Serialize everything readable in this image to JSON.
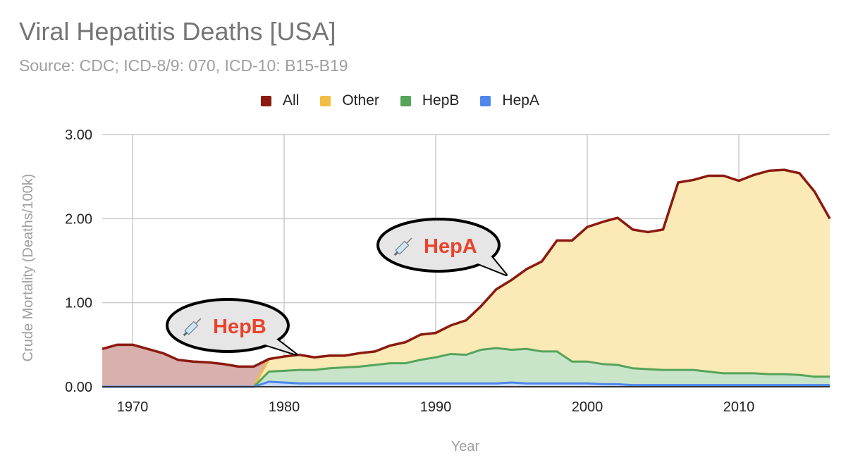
{
  "chart_data": {
    "type": "area",
    "stacked": true,
    "title": "Viral Hepatitis Deaths [USA]",
    "subtitle": "Source: CDC; ICD-8/9: 070, ICD-10: B15-B19",
    "xlabel": "Year",
    "ylabel": "Crude Mortality (Deaths/100k)",
    "xlim": [
      1968,
      2016
    ],
    "ylim": [
      0,
      3
    ],
    "xticks": [
      1970,
      1980,
      1990,
      2000,
      2010
    ],
    "xtick_labels": [
      "1970",
      "1980",
      "1990",
      "2000",
      "2010"
    ],
    "yticks": [
      0,
      1,
      2,
      3
    ],
    "ytick_labels": [
      "0.00",
      "1.00",
      "2.00",
      "3.00"
    ],
    "grid": true,
    "legend_position": "top",
    "x": [
      1968,
      1969,
      1970,
      1971,
      1972,
      1973,
      1974,
      1975,
      1976,
      1977,
      1978,
      1979,
      1980,
      1981,
      1982,
      1983,
      1984,
      1985,
      1986,
      1987,
      1988,
      1989,
      1990,
      1991,
      1992,
      1993,
      1994,
      1995,
      1996,
      1997,
      1998,
      1999,
      2000,
      2001,
      2002,
      2003,
      2004,
      2005,
      2006,
      2007,
      2008,
      2009,
      2010,
      2011,
      2012,
      2013,
      2014,
      2015,
      2016
    ],
    "series": [
      {
        "name": "All",
        "color": "#8b1a10",
        "fill": "#d8b0ae",
        "values": [
          0.45,
          0.5,
          0.5,
          0.45,
          0.4,
          0.32,
          0.3,
          0.29,
          0.27,
          0.24,
          0.24,
          0.33,
          0.36,
          0.38,
          0.35,
          0.37,
          0.37,
          0.4,
          0.42,
          0.49,
          0.53,
          0.62,
          0.64,
          0.73,
          0.79,
          0.96,
          1.16,
          1.27,
          1.4,
          1.49,
          1.74,
          1.74,
          1.9,
          1.96,
          2.01,
          1.87,
          1.84,
          1.87,
          2.43,
          2.46,
          2.51,
          2.51,
          2.45,
          2.52,
          2.57,
          2.58,
          2.54,
          2.32,
          2.0
        ]
      },
      {
        "name": "Other",
        "color": "#f2bd42",
        "fill": "#fbe9b6",
        "values": [
          0,
          0,
          0,
          0,
          0,
          0,
          0,
          0,
          0,
          0,
          0,
          0.15,
          0.17,
          0.18,
          0.15,
          0.15,
          0.14,
          0.16,
          0.16,
          0.21,
          0.25,
          0.3,
          0.29,
          0.34,
          0.41,
          0.52,
          0.7,
          0.83,
          0.95,
          1.07,
          1.32,
          1.44,
          1.6,
          1.69,
          1.75,
          1.65,
          1.63,
          1.67,
          2.23,
          2.26,
          2.33,
          2.35,
          2.29,
          2.36,
          2.42,
          2.43,
          2.4,
          2.2,
          1.88
        ]
      },
      {
        "name": "HepB",
        "color": "#55a45a",
        "fill": "#c8e5c9",
        "values": [
          0,
          0,
          0,
          0,
          0,
          0,
          0,
          0,
          0,
          0,
          0,
          0.12,
          0.14,
          0.16,
          0.16,
          0.18,
          0.19,
          0.2,
          0.22,
          0.24,
          0.24,
          0.28,
          0.31,
          0.35,
          0.34,
          0.4,
          0.42,
          0.39,
          0.41,
          0.38,
          0.38,
          0.26,
          0.26,
          0.24,
          0.23,
          0.2,
          0.19,
          0.18,
          0.18,
          0.18,
          0.16,
          0.14,
          0.14,
          0.14,
          0.13,
          0.13,
          0.12,
          0.1,
          0.1
        ]
      },
      {
        "name": "HepA",
        "color": "#4e86ec",
        "fill": "#c6d9f8",
        "values": [
          0,
          0,
          0,
          0,
          0,
          0,
          0,
          0,
          0,
          0,
          0,
          0.06,
          0.05,
          0.04,
          0.04,
          0.04,
          0.04,
          0.04,
          0.04,
          0.04,
          0.04,
          0.04,
          0.04,
          0.04,
          0.04,
          0.04,
          0.04,
          0.05,
          0.04,
          0.04,
          0.04,
          0.04,
          0.04,
          0.03,
          0.03,
          0.02,
          0.02,
          0.02,
          0.02,
          0.02,
          0.02,
          0.02,
          0.02,
          0.02,
          0.02,
          0.02,
          0.02,
          0.02,
          0.02
        ]
      }
    ],
    "legend": [
      "All",
      "Other",
      "HepB",
      "HepA"
    ],
    "annotations": [
      {
        "text": "HepB",
        "icon": "syringe",
        "year": 1981,
        "value": 0.38,
        "color": "#e8442c"
      },
      {
        "text": "HepA",
        "icon": "syringe",
        "year": 1995,
        "value": 1.3,
        "color": "#e8442c"
      }
    ]
  }
}
